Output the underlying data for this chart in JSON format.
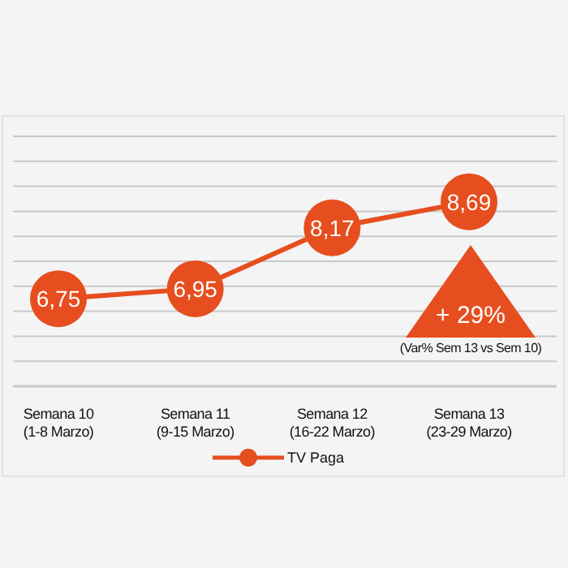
{
  "chart_data": {
    "type": "line",
    "categories": [
      "Semana 10\n(1-8 Marzo)",
      "Semana 11\n(9-15 Marzo)",
      "Semana 12\n(16-22 Marzo)",
      "Semana 13\n(23-29 Marzo)"
    ],
    "series": [
      {
        "name": "TV Paga",
        "color": "#e64e1f",
        "values": [
          6.75,
          6.95,
          8.17,
          8.69
        ],
        "value_labels": [
          "6,75",
          "6,95",
          "8,17",
          "8,69"
        ]
      }
    ],
    "ylim": [
      5,
      10
    ],
    "tick_labels": "x",
    "grid": "y",
    "legend": "bottom",
    "marker": "circle",
    "line_style": "solid",
    "annotations": [
      "+ 29%",
      "(Var% Sem 13 vs Sem 10)"
    ]
  }
}
